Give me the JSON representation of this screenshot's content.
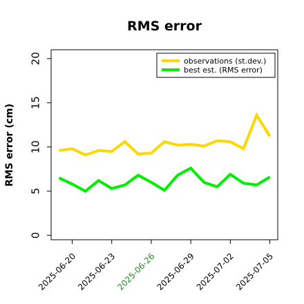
{
  "chart_data": {
    "type": "line",
    "title": "RMS error",
    "ylabel": "RMS error (cm)",
    "xlabel": "",
    "ylim": [
      -0.5,
      21
    ],
    "yticks": [
      0,
      5,
      10,
      15,
      20
    ],
    "x": [
      "2025-06-19",
      "2025-06-20",
      "2025-06-21",
      "2025-06-22",
      "2025-06-23",
      "2025-06-24",
      "2025-06-25",
      "2025-06-26",
      "2025-06-27",
      "2025-06-28",
      "2025-06-29",
      "2025-06-30",
      "2025-07-01",
      "2025-07-02",
      "2025-07-03",
      "2025-07-04",
      "2025-07-05"
    ],
    "xlim_index": [
      -0.6,
      16.6
    ],
    "xtick_labels": [
      {
        "label": "2025-06-20",
        "index": 1,
        "color": "#000000"
      },
      {
        "label": "2025-06-23",
        "index": 4,
        "color": "#000000"
      },
      {
        "label": "2025-06-26",
        "index": 7,
        "color": "#228b22"
      },
      {
        "label": "2025-06-29",
        "index": 10,
        "color": "#000000"
      },
      {
        "label": "2025-07-02",
        "index": 13,
        "color": "#000000"
      },
      {
        "label": "2025-07-05",
        "index": 16,
        "color": "#000000"
      }
    ],
    "series": [
      {
        "name": "observations (st.dev.)",
        "color": "#ffd700",
        "values": [
          9.6,
          9.8,
          9.1,
          9.6,
          9.5,
          10.6,
          9.2,
          9.3,
          10.6,
          10.2,
          10.3,
          10.1,
          10.7,
          10.6,
          9.8,
          13.6,
          11.2
        ]
      },
      {
        "name": "best est. (RMS error)",
        "color": "#00ee00",
        "values": [
          6.5,
          5.8,
          5.0,
          6.2,
          5.3,
          5.7,
          6.8,
          6.0,
          5.1,
          6.8,
          7.6,
          6.0,
          5.5,
          6.9,
          5.9,
          5.7,
          6.6
        ]
      }
    ],
    "grid": false,
    "legend_position": "top-right"
  }
}
